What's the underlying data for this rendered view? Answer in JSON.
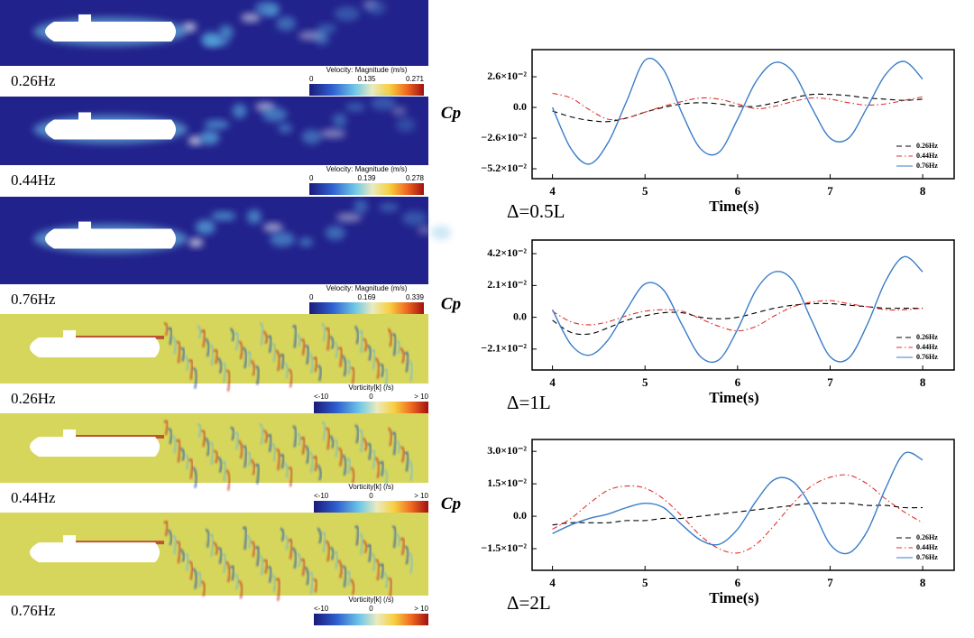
{
  "flow_panels": [
    {
      "label": "0.26Hz",
      "colorbar": {
        "title": "Velocity: Magnitude (m/s)",
        "ticks": [
          "0",
          "0.135",
          "0.271"
        ]
      }
    },
    {
      "label": "0.44Hz",
      "colorbar": {
        "title": "Velocity: Magnitude (m/s)",
        "ticks": [
          "0",
          "0.139",
          "0.278"
        ]
      }
    },
    {
      "label": "0.76Hz",
      "colorbar": {
        "title": "Velocity: Magnitude (m/s)",
        "ticks": [
          "0",
          "0.169",
          "0.339"
        ]
      }
    },
    {
      "label": "0.26Hz",
      "colorbar": {
        "title": "Vorticity[k] (/s)",
        "ticks": [
          "<-10",
          "0",
          "> 10"
        ]
      }
    },
    {
      "label": "0.44Hz",
      "colorbar": {
        "title": "Vorticity[k] (/s)",
        "ticks": [
          "<-10",
          "0",
          "> 10"
        ]
      }
    },
    {
      "label": "0.76Hz",
      "colorbar": {
        "title": "Vorticity[k] (/s)",
        "ticks": [
          "<-10",
          "0",
          "> 10"
        ]
      }
    }
  ],
  "chart_data": [
    {
      "type": "line",
      "ylabel": "Cp",
      "xlabel": "Time(s)",
      "annotation": "Δ=0.5L",
      "x": [
        4.0,
        4.2,
        4.4,
        4.6,
        4.8,
        5.0,
        5.2,
        5.4,
        5.6,
        5.8,
        6.0,
        6.2,
        6.4,
        6.6,
        6.8,
        7.0,
        7.2,
        7.4,
        7.6,
        7.8,
        8.0
      ],
      "xlim": [
        3.78,
        8.34
      ],
      "xticks": [
        4,
        5,
        6,
        7,
        8
      ],
      "ylim": [
        -0.0604,
        0.049
      ],
      "yticks": [
        {
          "value": -0.052,
          "label": "−5.2×10⁻²"
        },
        {
          "value": -0.026,
          "label": "−2.6×10⁻²"
        },
        {
          "value": 0,
          "label": "0.0"
        },
        {
          "value": 0.026,
          "label": "2.6×10⁻²"
        }
      ],
      "legend": "lower right",
      "series": [
        {
          "name": "0.26Hz",
          "color": "#000000",
          "dash": "dashed",
          "values": [
            -0.003,
            -0.008,
            -0.011,
            -0.012,
            -0.009,
            -0.004,
            0.0,
            0.003,
            0.004,
            0.003,
            0.001,
            0.001,
            0.004,
            0.008,
            0.011,
            0.011,
            0.01,
            0.008,
            0.007,
            0.006,
            0.007
          ]
        },
        {
          "name": "0.44Hz",
          "color": "#e0302a",
          "dash": "dashdot",
          "values": [
            0.012,
            0.008,
            -0.002,
            -0.01,
            -0.009,
            -0.004,
            0.001,
            0.005,
            0.008,
            0.007,
            0.003,
            -0.001,
            0.001,
            0.005,
            0.008,
            0.007,
            0.004,
            0.002,
            0.003,
            0.006,
            0.009
          ]
        },
        {
          "name": "0.76Hz",
          "color": "#3a7cc8",
          "dash": "solid",
          "values": [
            0.0,
            -0.035,
            -0.048,
            -0.03,
            0.005,
            0.04,
            0.032,
            -0.005,
            -0.035,
            -0.038,
            -0.01,
            0.022,
            0.038,
            0.03,
            0.0,
            -0.026,
            -0.026,
            0.0,
            0.028,
            0.039,
            0.024
          ]
        }
      ]
    },
    {
      "type": "line",
      "ylabel": "Cp",
      "xlabel": "Time(s)",
      "annotation": "Δ=1L",
      "x": [
        4.0,
        4.2,
        4.4,
        4.6,
        4.8,
        5.0,
        5.2,
        5.4,
        5.6,
        5.8,
        6.0,
        6.2,
        6.4,
        6.6,
        6.8,
        7.0,
        7.2,
        7.4,
        7.6,
        7.8,
        8.0
      ],
      "xlim": [
        3.78,
        8.34
      ],
      "xticks": [
        4,
        5,
        6,
        7,
        8
      ],
      "ylim": [
        -0.0348,
        0.051
      ],
      "yticks": [
        {
          "value": -0.021,
          "label": "−2.1×10⁻²"
        },
        {
          "value": 0,
          "label": "0.0"
        },
        {
          "value": 0.021,
          "label": "2.1×10⁻²"
        },
        {
          "value": 0.042,
          "label": "4.2×10⁻²"
        }
      ],
      "legend": "lower right",
      "series": [
        {
          "name": "0.26Hz",
          "color": "#000000",
          "dash": "dashed",
          "values": [
            -0.002,
            -0.01,
            -0.011,
            -0.007,
            -0.002,
            0.001,
            0.003,
            0.003,
            0.0,
            -0.001,
            0.0,
            0.003,
            0.006,
            0.008,
            0.009,
            0.009,
            0.008,
            0.007,
            0.006,
            0.006,
            0.006
          ]
        },
        {
          "name": "0.44Hz",
          "color": "#e0302a",
          "dash": "dashdot",
          "values": [
            0.004,
            -0.003,
            -0.005,
            -0.003,
            0.001,
            0.004,
            0.005,
            0.004,
            -0.001,
            -0.006,
            -0.009,
            -0.006,
            0.001,
            0.007,
            0.01,
            0.011,
            0.009,
            0.007,
            0.005,
            0.005,
            0.006
          ]
        },
        {
          "name": "0.76Hz",
          "color": "#3a7cc8",
          "dash": "solid",
          "values": [
            0.005,
            -0.018,
            -0.025,
            -0.015,
            0.005,
            0.022,
            0.018,
            -0.005,
            -0.026,
            -0.028,
            -0.008,
            0.018,
            0.03,
            0.024,
            -0.002,
            -0.026,
            -0.027,
            -0.005,
            0.024,
            0.04,
            0.03
          ]
        }
      ]
    },
    {
      "type": "line",
      "ylabel": "Cp",
      "xlabel": "Time(s)",
      "annotation": "Δ=2L",
      "x": [
        4.0,
        4.2,
        4.4,
        4.6,
        4.8,
        5.0,
        5.2,
        5.4,
        5.6,
        5.8,
        6.0,
        6.2,
        6.4,
        6.6,
        6.8,
        7.0,
        7.2,
        7.4,
        7.6,
        7.8,
        8.0
      ],
      "xlim": [
        3.78,
        8.34
      ],
      "xticks": [
        4,
        5,
        6,
        7,
        8
      ],
      "ylim": [
        -0.025,
        0.0355
      ],
      "yticks": [
        {
          "value": -0.015,
          "label": "−1.5×10⁻²"
        },
        {
          "value": 0,
          "label": "0.0"
        },
        {
          "value": 0.015,
          "label": "1.5×10⁻²"
        },
        {
          "value": 0.03,
          "label": "3.0×10⁻²"
        }
      ],
      "legend": "lower right",
      "series": [
        {
          "name": "0.26Hz",
          "color": "#000000",
          "dash": "dashed",
          "values": [
            -0.004,
            -0.003,
            -0.003,
            -0.003,
            -0.002,
            -0.002,
            -0.001,
            -0.001,
            0.0,
            0.001,
            0.002,
            0.003,
            0.004,
            0.005,
            0.006,
            0.006,
            0.006,
            0.005,
            0.005,
            0.004,
            0.004
          ]
        },
        {
          "name": "0.44Hz",
          "color": "#e0302a",
          "dash": "dashdot",
          "values": [
            -0.006,
            -0.001,
            0.006,
            0.012,
            0.014,
            0.013,
            0.008,
            0.0,
            -0.009,
            -0.015,
            -0.017,
            -0.013,
            -0.004,
            0.006,
            0.014,
            0.018,
            0.019,
            0.015,
            0.008,
            0.002,
            -0.003
          ]
        },
        {
          "name": "0.76Hz",
          "color": "#3a7cc8",
          "dash": "solid",
          "values": [
            -0.008,
            -0.004,
            -0.001,
            0.001,
            0.004,
            0.006,
            0.004,
            -0.004,
            -0.011,
            -0.013,
            -0.006,
            0.007,
            0.017,
            0.016,
            0.004,
            -0.013,
            -0.017,
            -0.007,
            0.013,
            0.029,
            0.026
          ]
        }
      ]
    }
  ]
}
